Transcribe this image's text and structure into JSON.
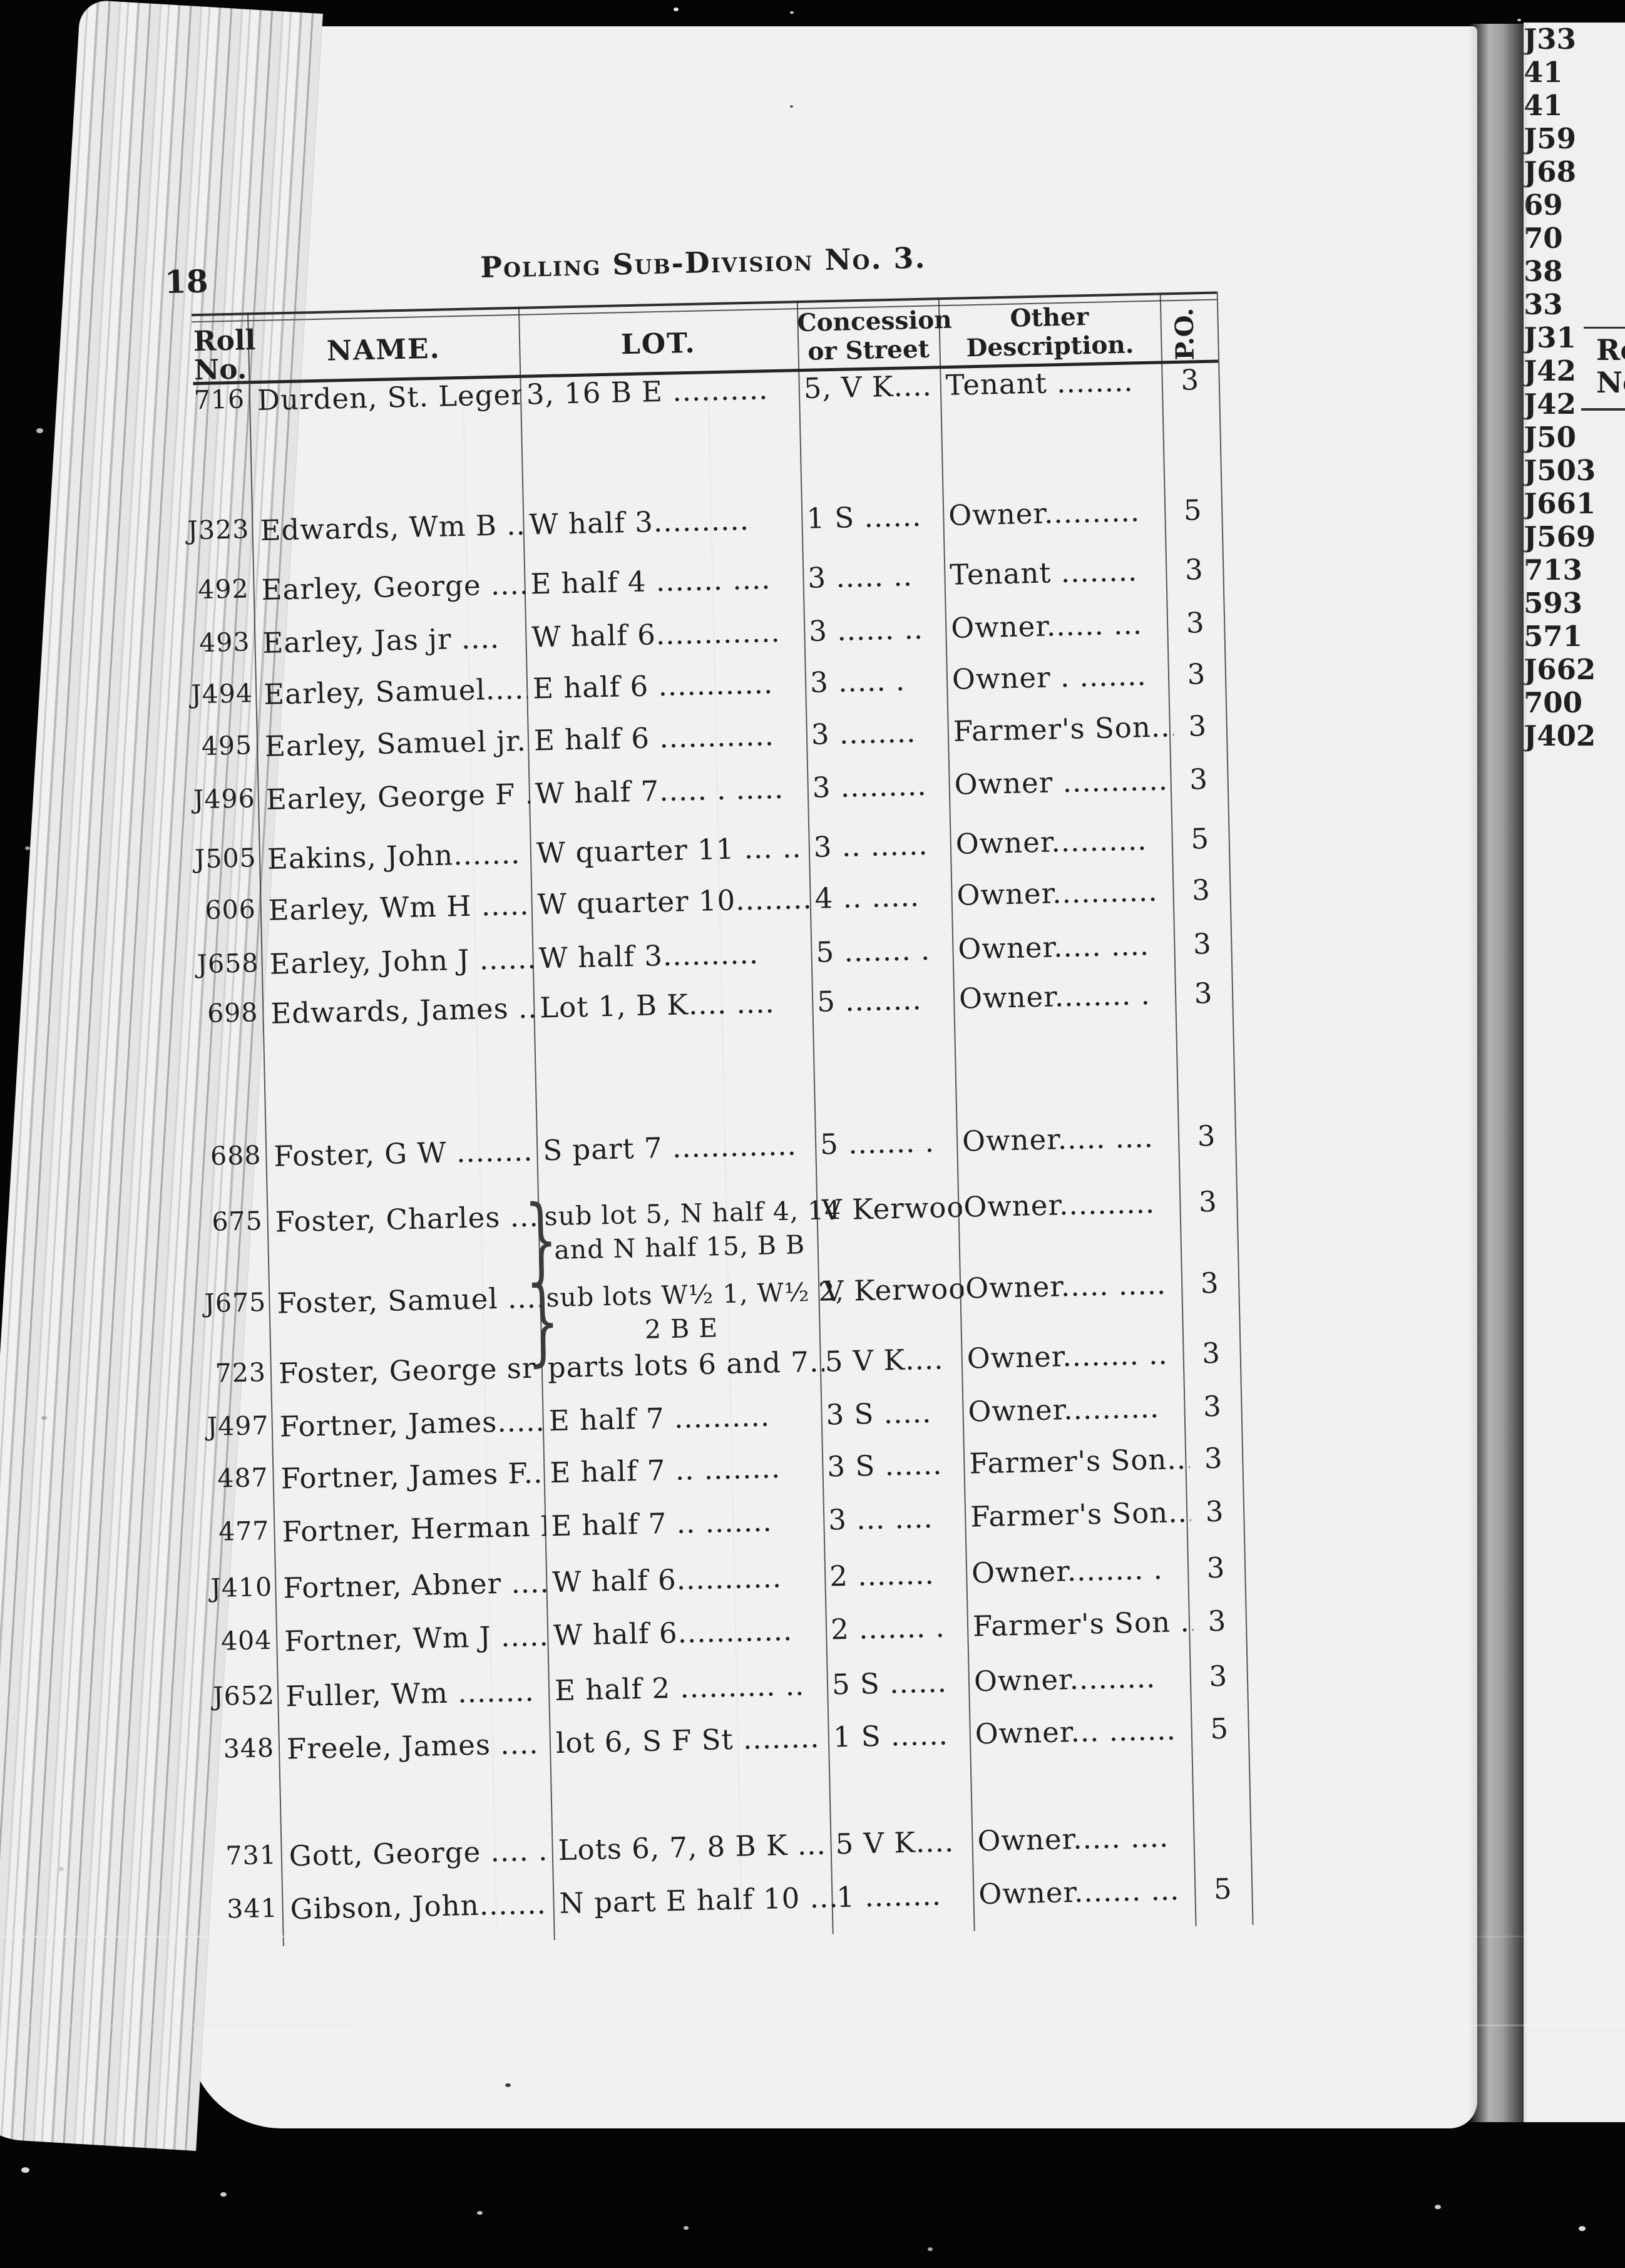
{
  "colors": {
    "paper": "#f2f2f0",
    "ink": "#1f1f1f",
    "background": "#050505",
    "rule": "#2e2e2c"
  },
  "page": {
    "number": "18",
    "title": "Polling Sub-Division No. 3."
  },
  "table": {
    "headers": {
      "roll_line1": "Roll",
      "roll_line2": "No.",
      "name": "NAME.",
      "lot": "LOT.",
      "concession_line1": "Concession",
      "concession_line2": "or Street",
      "description_line1": "Other",
      "description_line2": "Description.",
      "po": "P.O."
    },
    "rows": [
      {
        "roll": "716",
        "name": "Durden, St. Leger ...",
        "lot": "3, 16 B E ..........",
        "concession": "5, V K....",
        "description": "Tenant ........",
        "po": "3"
      },
      {
        "roll": "J323",
        "name": "Edwards, Wm B ....",
        "lot": "W half 3..........",
        "concession": "1 S ......",
        "description": "Owner..........",
        "po": "5"
      },
      {
        "roll": "492",
        "name": "Earley, George .......",
        "lot": "E half 4 ....... ....",
        "concession": "3 ..... ..",
        "description": "Tenant ........",
        "po": "3"
      },
      {
        "roll": "493",
        "name": "Earley, Jas jr ....",
        "lot": "W half 6.............",
        "concession": "3 ...... ..",
        "description": "Owner...... ...",
        "po": "3"
      },
      {
        "roll": "J494",
        "name": "Earley, Samuel.....",
        "lot": "E half 6 ............",
        "concession": "3 ..... .",
        "description": "Owner . .......",
        "po": "3"
      },
      {
        "roll": "495",
        "name": "Earley, Samuel jr....",
        "lot": "E half 6 ............",
        "concession": "3 ........",
        "description": "Farmer's Son....",
        "po": "3"
      },
      {
        "roll": "J496",
        "name": "Earley, George F ..",
        "lot": "W half 7..... . .....",
        "concession": "3 .........",
        "description": "Owner ...........",
        "po": "3"
      },
      {
        "roll": "J505",
        "name": "Eakins, John.......",
        "lot": "W quarter 11 ... ..",
        "concession": "3 .. ......",
        "description": "Owner..........",
        "po": "5"
      },
      {
        "roll": "606",
        "name": "Earley, Wm H .....",
        "lot": "W quarter 10........",
        "concession": "4 .. .....",
        "description": "Owner...........",
        "po": "3"
      },
      {
        "roll": "J658",
        "name": "Earley, John J .......",
        "lot": "W half 3..........",
        "concession": "5 ....... .",
        "description": "Owner..... ....",
        "po": "3"
      },
      {
        "roll": "698",
        "name": "Edwards, James ....",
        "lot": "Lot 1, B K.... ....",
        "concession": "5 ........",
        "description": "Owner........ .",
        "po": "3"
      },
      {
        "roll": "688",
        "name": "Foster, G W ........",
        "lot": "S part 7 .............",
        "concession": "5 ....... .",
        "description": "Owner..... ....",
        "po": "3"
      },
      {
        "roll": "675",
        "name": "Foster, Charles ....",
        "brace": true,
        "lot": "sub lot 5, N half 4, 14",
        "lot2": "and N half 15, B B",
        "concession": "V Kerwood",
        "description": "Owner..........",
        "po": "3"
      },
      {
        "roll": "J675",
        "name": "Foster, Samuel ....",
        "brace": true,
        "lot": "sub lots W½ 1, W½ 2,",
        "lot2": "2 B E",
        "concession": "V Kerwood",
        "description": "Owner..... .....",
        "po": "3"
      },
      {
        "roll": "723",
        "name": "Foster, George sr . .",
        "lot": "parts lots 6 and 7....",
        "concession": "5 V K....",
        "description": "Owner........ ..",
        "po": "3"
      },
      {
        "roll": "J497",
        "name": "Fortner, James.....",
        "lot": "E half 7 ..........",
        "concession": "3 S .....",
        "description": "Owner..........",
        "po": "3"
      },
      {
        "roll": "487",
        "name": "Fortner, James F......",
        "lot": "E half 7 .. ........",
        "concession": "3 S ......",
        "description": "Farmer's Son....",
        "po": "3"
      },
      {
        "roll": "477",
        "name": "Fortner, Herman E .",
        "lot": "E half 7 .. .......",
        "concession": "3 ... ....",
        "description": "Farmer's Son....",
        "po": "3"
      },
      {
        "roll": "J410",
        "name": "Fortner, Abner ....",
        "lot": "W half 6...........",
        "concession": "2 ........",
        "description": "Owner........ .",
        "po": "3"
      },
      {
        "roll": "404",
        "name": "Fortner, Wm J .....",
        "lot": "W half 6............",
        "concession": "2 ....... .",
        "description": "Farmer's Son ....",
        "po": "3"
      },
      {
        "roll": "J652",
        "name": "Fuller, Wm ........",
        "lot": "E half 2 .......... ..",
        "concession": "5 S ......",
        "description": "Owner.........",
        "po": "3"
      },
      {
        "roll": "348",
        "name": "Freele, James ....",
        "lot": "lot 6, S F St ........",
        "concession": "1 S ......",
        "description": "Owner... .......",
        "po": "5"
      },
      {
        "roll": "731",
        "name": "Gott, George .... .",
        "lot": "Lots 6, 7, 8 B K ... ..",
        "concession": "5 V K....",
        "description": "Owner..... ....",
        "po": ""
      },
      {
        "roll": "341",
        "name": "Gibson, John.......",
        "lot": "N part E half 10 .....",
        "concession": "1 ........",
        "description": "Owner....... ...",
        "po": "5"
      }
    ]
  },
  "facing_page": {
    "header_line1": "Ro",
    "header_line2": "No",
    "roll_numbers": [
      "J33",
      "41",
      "41",
      "J59",
      "J68",
      "69",
      "70",
      "38",
      "33",
      "J31",
      "J42",
      "J42",
      "J50",
      "J503",
      "J661",
      "J569",
      "713",
      "593",
      "571",
      "J662",
      "700",
      "J402"
    ]
  }
}
